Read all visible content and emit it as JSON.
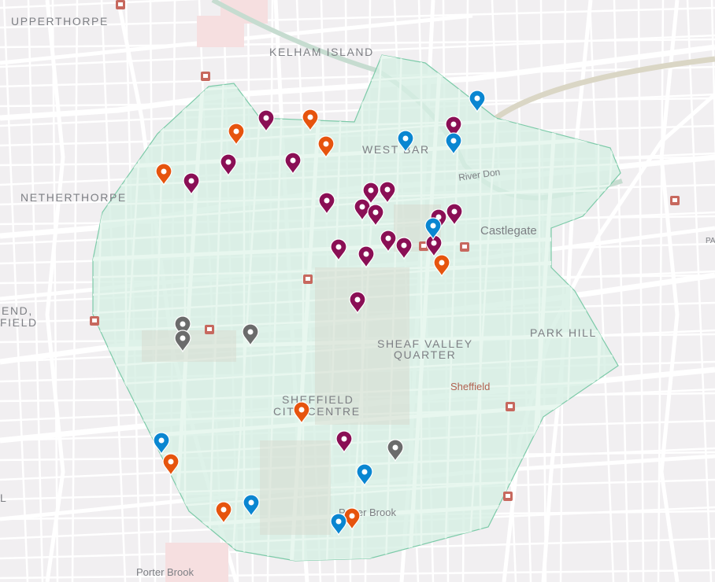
{
  "map": {
    "area_fill": "#d6efe3",
    "area_stroke": "#7ccaa8",
    "labels": {
      "upperthorpe": "UPPERTHORPE",
      "kelham_island": "KELHAM ISLAND",
      "west_bar": "WEST BAR",
      "netherthorpe": "NETHERTHORPE",
      "castlegate": "Castlegate",
      "river_don": "River Don",
      "end": "END,",
      "field": "FIELD",
      "park_hill": "PARK HILL",
      "sheaf_valley_1": "SHEAF VALLEY",
      "sheaf_valley_2": "QUARTER",
      "sheffield_station": "Sheffield",
      "city_centre_1": "SHEFFIELD",
      "city_centre_2": "CITY CENTRE",
      "porter_brook_1": "Porter Brook",
      "porter_brook_2": "Porter Brook",
      "edge_l": "L",
      "edge_pa": "PA"
    },
    "marker_colors": {
      "purple": "#8a0f55",
      "orange": "#e6540e",
      "blue": "#0a86d1",
      "gray": "#6b6b6b"
    },
    "marker_counts": {
      "purple": 19,
      "orange": 9,
      "blue": 8,
      "gray": 4
    }
  }
}
